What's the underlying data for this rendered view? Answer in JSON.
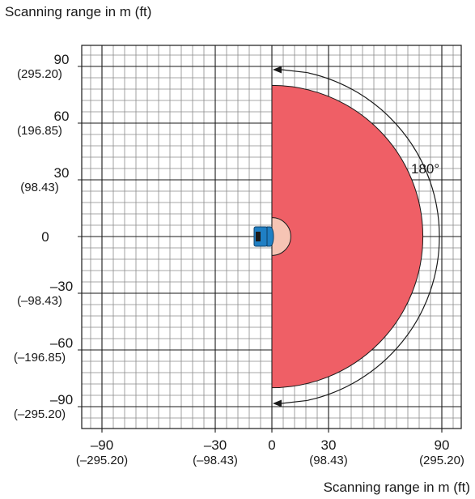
{
  "title_top": "Scanning range in m (ft)",
  "title_bottom": "Scanning range in m (ft)",
  "angle_label": "180°",
  "y_ticks": [
    {
      "value": 90,
      "m": "90",
      "ft": "(295.20)"
    },
    {
      "value": 60,
      "m": "60",
      "ft": "(196.85)"
    },
    {
      "value": 30,
      "m": "30",
      "ft": "(98.43)"
    },
    {
      "value": 0,
      "m": "0",
      "ft": ""
    },
    {
      "value": -30,
      "m": "–30",
      "ft": "(–98.43)"
    },
    {
      "value": -60,
      "m": "–60",
      "ft": "(–196.85)"
    },
    {
      "value": -90,
      "m": "–90",
      "ft": "(–295.20)"
    }
  ],
  "x_ticks": [
    {
      "value": -90,
      "m": "–90",
      "ft": "(–295.20)"
    },
    {
      "value": -30,
      "m": "–30",
      "ft": "(–98.43)"
    },
    {
      "value": 0,
      "m": "0",
      "ft": ""
    },
    {
      "value": 30,
      "m": "30",
      "ft": "(98.43)"
    },
    {
      "value": 90,
      "m": "90",
      "ft": "(295.20)"
    }
  ],
  "scan_field": {
    "radius_m": 80,
    "angle_deg": 180,
    "near_zone_radius_m": 10
  },
  "colors": {
    "scan_field": "#ef5f66",
    "near_zone": "#f6c4b4",
    "sensor_body": "#1f7fc4",
    "sensor_window": "#1a1a1a",
    "grid": "#8a8a8a",
    "grid_major": "#1a1a1a"
  }
}
